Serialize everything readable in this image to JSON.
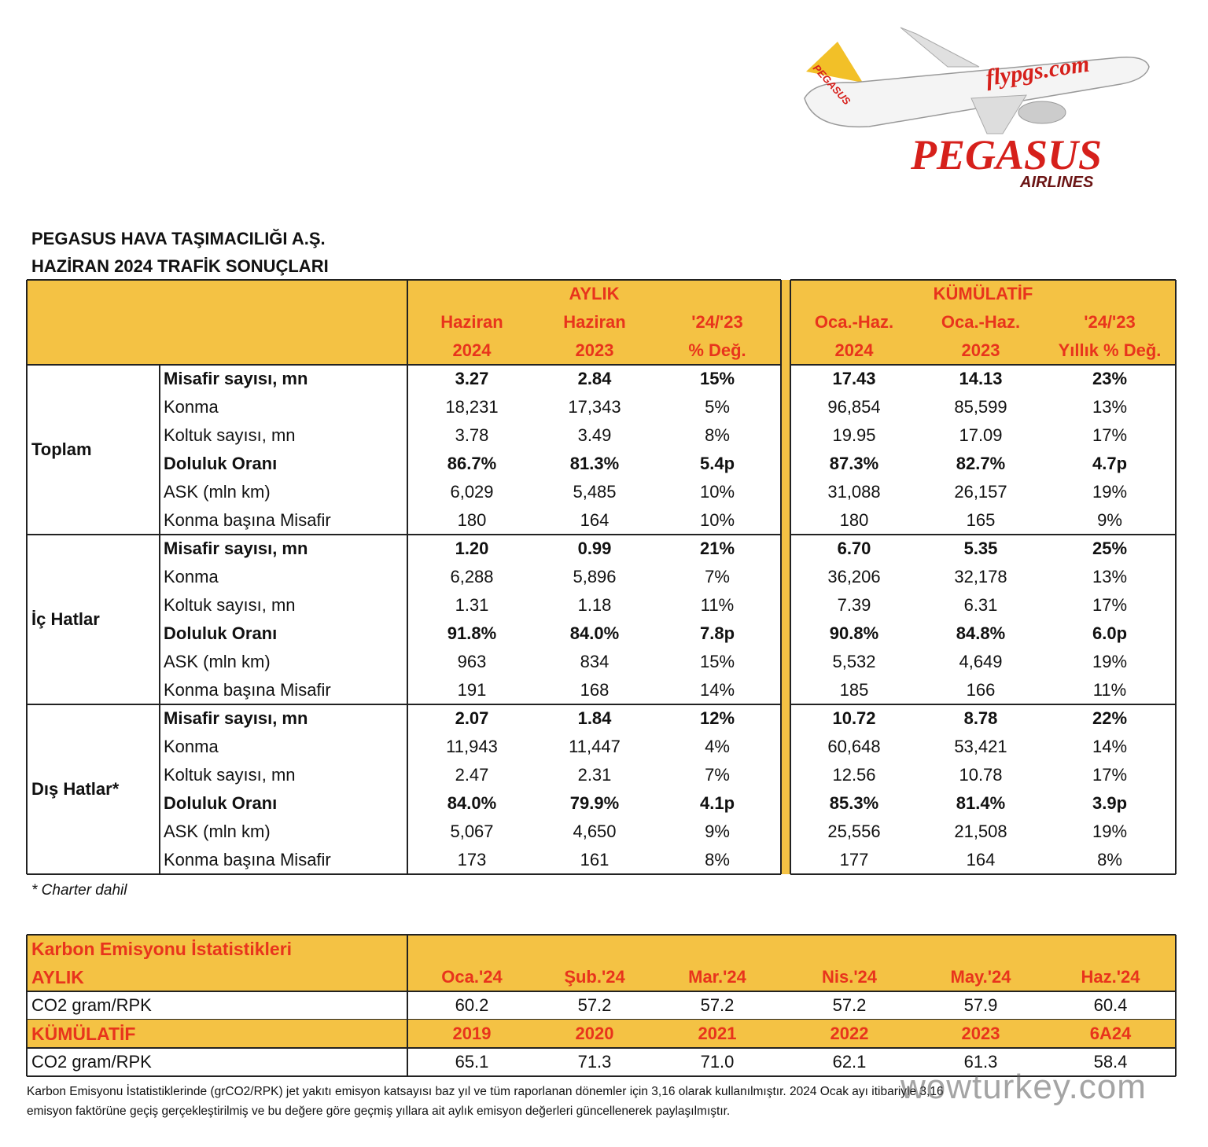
{
  "logo": {
    "tail": "PEGASUS",
    "livery": "flypgs.com",
    "brand": "PEGASUS",
    "sub": "AIRLINES"
  },
  "header": {
    "line1": "PEGASUS HAVA TAŞIMACILIĞI A.Ş.",
    "line2": "HAZİRAN 2024 TRAFİK SONUÇLARI"
  },
  "traffic_table": {
    "groups": [
      "AYLIK",
      "KÜMÜLATİF"
    ],
    "columns": [
      [
        "Haziran",
        "2024"
      ],
      [
        "Haziran",
        "2023"
      ],
      [
        "'24/'23",
        "% Değ."
      ],
      [
        "Oca.-Haz.",
        "2024"
      ],
      [
        "Oca.-Haz.",
        "2023"
      ],
      [
        "'24/'23",
        "Yıllık % Değ."
      ]
    ],
    "sections": [
      {
        "name": "Toplam",
        "rows": [
          {
            "label": "Misafir sayısı, mn",
            "bold": true,
            "values": [
              "3.27",
              "2.84",
              "15%",
              "17.43",
              "14.13",
              "23%"
            ]
          },
          {
            "label": "Konma",
            "bold": false,
            "values": [
              "18,231",
              "17,343",
              "5%",
              "96,854",
              "85,599",
              "13%"
            ]
          },
          {
            "label": "Koltuk sayısı, mn",
            "bold": false,
            "values": [
              "3.78",
              "3.49",
              "8%",
              "19.95",
              "17.09",
              "17%"
            ]
          },
          {
            "label": "Doluluk Oranı",
            "bold": true,
            "values": [
              "86.7%",
              "81.3%",
              "5.4p",
              "87.3%",
              "82.7%",
              "4.7p"
            ]
          },
          {
            "label": "ASK (mln km)",
            "bold": false,
            "values": [
              "6,029",
              "5,485",
              "10%",
              "31,088",
              "26,157",
              "19%"
            ]
          },
          {
            "label": "Konma başına Misafir",
            "bold": false,
            "values": [
              "180",
              "164",
              "10%",
              "180",
              "165",
              "9%"
            ]
          }
        ]
      },
      {
        "name": "İç Hatlar",
        "rows": [
          {
            "label": "Misafir sayısı, mn",
            "bold": true,
            "values": [
              "1.20",
              "0.99",
              "21%",
              "6.70",
              "5.35",
              "25%"
            ]
          },
          {
            "label": "Konma",
            "bold": false,
            "values": [
              "6,288",
              "5,896",
              "7%",
              "36,206",
              "32,178",
              "13%"
            ]
          },
          {
            "label": "Koltuk sayısı, mn",
            "bold": false,
            "values": [
              "1.31",
              "1.18",
              "11%",
              "7.39",
              "6.31",
              "17%"
            ]
          },
          {
            "label": "Doluluk Oranı",
            "bold": true,
            "values": [
              "91.8%",
              "84.0%",
              "7.8p",
              "90.8%",
              "84.8%",
              "6.0p"
            ]
          },
          {
            "label": "ASK (mln km)",
            "bold": false,
            "values": [
              "963",
              "834",
              "15%",
              "5,532",
              "4,649",
              "19%"
            ]
          },
          {
            "label": "Konma başına Misafir",
            "bold": false,
            "values": [
              "191",
              "168",
              "14%",
              "185",
              "166",
              "11%"
            ]
          }
        ]
      },
      {
        "name": "Dış Hatlar*",
        "rows": [
          {
            "label": "Misafir sayısı, mn",
            "bold": true,
            "values": [
              "2.07",
              "1.84",
              "12%",
              "10.72",
              "8.78",
              "22%"
            ]
          },
          {
            "label": "Konma",
            "bold": false,
            "values": [
              "11,943",
              "11,447",
              "4%",
              "60,648",
              "53,421",
              "14%"
            ]
          },
          {
            "label": "Koltuk sayısı, mn",
            "bold": false,
            "values": [
              "2.47",
              "2.31",
              "7%",
              "12.56",
              "10.78",
              "17%"
            ]
          },
          {
            "label": "Doluluk Oranı",
            "bold": true,
            "values": [
              "84.0%",
              "79.9%",
              "4.1p",
              "85.3%",
              "81.4%",
              "3.9p"
            ]
          },
          {
            "label": "ASK (mln km)",
            "bold": false,
            "values": [
              "5,067",
              "4,650",
              "9%",
              "25,556",
              "21,508",
              "19%"
            ]
          },
          {
            "label": "Konma başına Misafir",
            "bold": false,
            "values": [
              "173",
              "161",
              "8%",
              "177",
              "164",
              "8%"
            ]
          }
        ]
      }
    ]
  },
  "footnote": "* Charter dahil",
  "carbon_table": {
    "title": "Karbon Emisyonu İstatistikleri",
    "blocks": [
      {
        "label": "AYLIK",
        "periods": [
          "Oca.'24",
          "Şub.'24",
          "Mar.'24",
          "Nis.'24",
          "May.'24",
          "Haz.'24"
        ],
        "metric": "CO2 gram/RPK",
        "values": [
          "60.2",
          "57.2",
          "57.2",
          "57.2",
          "57.9",
          "60.4"
        ]
      },
      {
        "label": "KÜMÜLATİF",
        "periods": [
          "2019",
          "2020",
          "2021",
          "2022",
          "2023",
          "6A24"
        ],
        "metric": "CO2 gram/RPK",
        "values": [
          "65.1",
          "71.3",
          "71.0",
          "62.1",
          "61.3",
          "58.4"
        ]
      }
    ]
  },
  "note": [
    "Karbon Emisyonu İstatistiklerinde (grCO2/RPK) jet yakıtı emisyon katsayısı baz yıl ve tüm raporlanan dönemler için 3,16 olarak kullanılmıştır. 2024 Ocak ayı itibariyle 3,16",
    "emisyon faktörüne geçiş gerçekleştirilmiş ve bu değere göre geçmiş yıllara ait aylık emisyon değerleri güncellenerek paylaşılmıştır."
  ],
  "watermark": "wowturkey.com"
}
